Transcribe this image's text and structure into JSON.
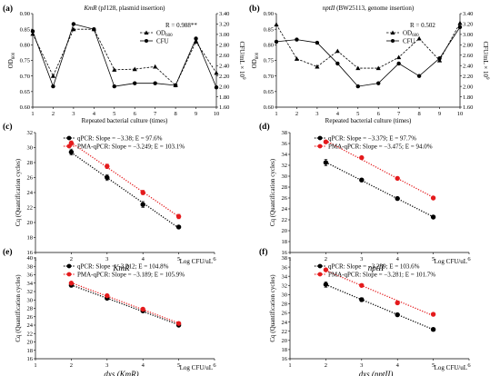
{
  "panels": {
    "a": {
      "label": "(a)",
      "title_italic": "KmR",
      "title_rest": " (pJ128, plasmid insertion)",
      "annotation": "R = 0.988**",
      "xlabel": "Repeated bacterial culture (times)",
      "ylabel_left": "OD600",
      "ylabel_right": "CFU/mL × 10⁹",
      "legend": [
        "OD600",
        "CFU"
      ]
    },
    "b": {
      "label": "(b)",
      "title_italic": "nptII",
      "title_rest": " (BW25113, genome insertion)",
      "annotation": "R = 0.502",
      "xlabel": "Repeated bacterial culture (times)",
      "ylabel_left": "OD600",
      "ylabel_right": "CFU/mL × 10⁹",
      "legend": [
        "OD600",
        "CFU"
      ]
    },
    "c": {
      "label": "(c)",
      "xlabel_gene": "KmR",
      "xlabel_right": "Log CFU/uL",
      "ylabel": "Cq (Quantification cycles)",
      "legend": [
        "qPCR: Slope = −3.38; E = 97.6%",
        "PMA-qPCR: Slope = −3.249; E = 103.1%"
      ]
    },
    "d": {
      "label": "(d)",
      "xlabel_gene": "nptII",
      "xlabel_right": "Log CFU/uL",
      "ylabel": "Cq (Quantification cycles)",
      "legend": [
        "qPCR: Slope = −3.379; E = 97.7%",
        "PMA-qPCR: Slope = −3.475; E = 94.0%"
      ]
    },
    "e": {
      "label": "(e)",
      "xlabel_gene": "dxs (KmR)",
      "xlabel_right": "Log CFU/uL",
      "ylabel": "Cq (Quantification cycles)",
      "legend": [
        "qPCR: Slope = −3.212; E = 104.8%",
        "PMA-qPCR: Slope = −3.189; E = 105.9%"
      ]
    },
    "f": {
      "label": "(f)",
      "xlabel_gene": "dxs (nptII)",
      "xlabel_right": "Log CFU/uL",
      "ylabel": "Cq (Quantification cycles)",
      "legend": [
        "qPCR: Slope = −3.239; E = 103.6%",
        "PMA-qPCR: Slope = −3.281; E = 101.7%"
      ]
    }
  },
  "colors": {
    "qpcr": "#000000",
    "pma": "#e41a1c"
  },
  "chart_data": [
    {
      "id": "a",
      "type": "line",
      "x": [
        1,
        2,
        3,
        4,
        5,
        6,
        7,
        8,
        9,
        10
      ],
      "xlim": [
        1,
        10
      ],
      "ylim": [
        0.6,
        0.9
      ],
      "yticks": [
        0.6,
        0.65,
        0.7,
        0.75,
        0.8,
        0.85,
        0.9
      ],
      "y2lim": [
        1.6,
        3.4
      ],
      "y2ticks": [
        1.6,
        1.8,
        2.0,
        2.2,
        2.4,
        2.6,
        2.8,
        3.0,
        3.2,
        3.4
      ],
      "series": [
        {
          "name": "OD600",
          "axis": "left",
          "values": [
            0.835,
            0.7,
            0.85,
            0.85,
            0.72,
            0.722,
            0.73,
            0.67,
            0.81,
            0.71
          ]
        },
        {
          "name": "CFU",
          "axis": "right",
          "values": [
            3.06,
            2.0,
            3.2,
            3.1,
            2.0,
            2.06,
            2.06,
            2.02,
            2.92,
            1.98
          ]
        }
      ]
    },
    {
      "id": "b",
      "type": "line",
      "x": [
        1,
        2,
        3,
        4,
        5,
        6,
        7,
        8,
        9,
        10
      ],
      "xlim": [
        1,
        10
      ],
      "ylim": [
        0.6,
        0.9
      ],
      "yticks": [
        0.6,
        0.65,
        0.7,
        0.75,
        0.8,
        0.85,
        0.9
      ],
      "y2lim": [
        1.6,
        3.4
      ],
      "y2ticks": [
        1.6,
        1.8,
        2.0,
        2.2,
        2.4,
        2.6,
        2.8,
        3.0,
        3.2,
        3.4
      ],
      "series": [
        {
          "name": "OD600",
          "axis": "left",
          "values": [
            0.865,
            0.755,
            0.73,
            0.78,
            0.725,
            0.725,
            0.76,
            0.82,
            0.75,
            0.87
          ]
        },
        {
          "name": "CFU",
          "axis": "right",
          "values": [
            2.86,
            2.9,
            2.84,
            2.44,
            2.0,
            2.06,
            2.44,
            2.2,
            2.54,
            3.14
          ]
        }
      ]
    },
    {
      "id": "c",
      "type": "scatter",
      "xlim": [
        1,
        6
      ],
      "xticks": [
        1,
        2,
        3,
        4,
        5,
        6
      ],
      "ylim": [
        16,
        32
      ],
      "yticks": [
        16,
        18,
        20,
        22,
        24,
        26,
        28,
        30,
        32
      ],
      "series": [
        {
          "name": "qPCR",
          "x": [
            2,
            3,
            4,
            5
          ],
          "y": [
            29.4,
            26.0,
            22.4,
            19.4
          ],
          "err": [
            0.4,
            0.4,
            0.4,
            0.2
          ]
        },
        {
          "name": "PMA-qPCR",
          "x": [
            2,
            3,
            4,
            5
          ],
          "y": [
            30.6,
            27.5,
            24.0,
            20.8
          ],
          "err": [
            0.3,
            0.3,
            0.3,
            0.3
          ]
        }
      ]
    },
    {
      "id": "d",
      "type": "scatter",
      "xlim": [
        1,
        6
      ],
      "xticks": [
        1,
        2,
        3,
        4,
        5,
        6
      ],
      "ylim": [
        16,
        38
      ],
      "yticks": [
        16,
        18,
        20,
        22,
        24,
        26,
        28,
        30,
        32,
        34,
        36,
        38
      ],
      "series": [
        {
          "name": "qPCR",
          "x": [
            2,
            3,
            4,
            5
          ],
          "y": [
            32.5,
            29.3,
            25.9,
            22.5
          ],
          "err": [
            0.6,
            0.2,
            0.2,
            0.2
          ]
        },
        {
          "name": "PMA-qPCR",
          "x": [
            2,
            3,
            4,
            5
          ],
          "y": [
            36.3,
            33.4,
            29.6,
            26.0
          ],
          "err": [
            0.2,
            0.2,
            0.2,
            0.2
          ]
        }
      ]
    },
    {
      "id": "e",
      "type": "scatter",
      "xlim": [
        1,
        6
      ],
      "xticks": [
        1,
        2,
        3,
        4,
        5,
        6
      ],
      "ylim": [
        16,
        40
      ],
      "yticks": [
        16,
        18,
        20,
        22,
        24,
        26,
        28,
        30,
        32,
        34,
        36,
        38,
        40
      ],
      "series": [
        {
          "name": "qPCR",
          "x": [
            2,
            3,
            4,
            5
          ],
          "y": [
            33.5,
            30.4,
            27.4,
            24.0
          ],
          "err": [
            0.4,
            0.3,
            0.3,
            0.3
          ]
        },
        {
          "name": "PMA-qPCR",
          "x": [
            2,
            3,
            4,
            5
          ],
          "y": [
            34.0,
            31.0,
            27.8,
            24.4
          ],
          "err": [
            0.3,
            0.3,
            0.3,
            0.3
          ]
        }
      ]
    },
    {
      "id": "f",
      "type": "scatter",
      "xlim": [
        1,
        6
      ],
      "xticks": [
        1,
        2,
        3,
        4,
        5,
        6
      ],
      "ylim": [
        16,
        38
      ],
      "yticks": [
        16,
        18,
        20,
        22,
        24,
        26,
        28,
        30,
        32,
        34,
        36,
        38
      ],
      "series": [
        {
          "name": "qPCR",
          "x": [
            2,
            3,
            4,
            5
          ],
          "y": [
            32.2,
            28.9,
            25.6,
            22.4
          ],
          "err": [
            0.6,
            0.4,
            0.3,
            0.3
          ]
        },
        {
          "name": "PMA-qPCR",
          "x": [
            2,
            3,
            4,
            5
          ],
          "y": [
            35.4,
            32.0,
            28.2,
            25.7
          ],
          "err": [
            0.3,
            0.3,
            0.3,
            0.2
          ]
        }
      ]
    }
  ]
}
